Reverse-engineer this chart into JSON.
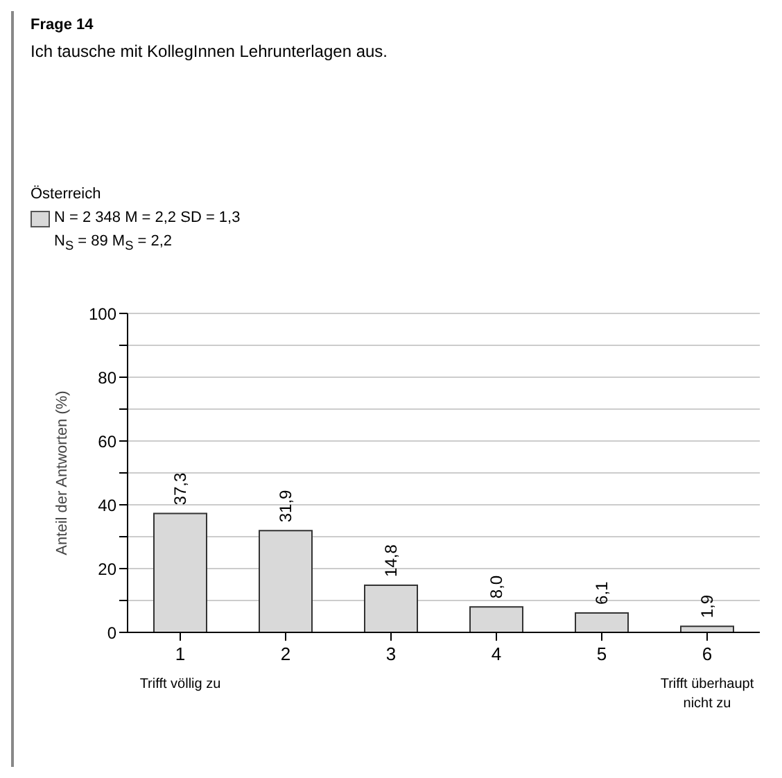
{
  "chart_data": {
    "type": "bar",
    "title": "Frage 14",
    "subtitle": "Ich tausche mit KollegInnen Lehrunterlagen aus.",
    "legend_title": "Österreich",
    "annotations": [
      "N$_{S}$ = 89  M$_{S}$ = 2,2"
    ],
    "categories": [
      "1\nTrifft völlig zu",
      "2",
      "3",
      "4",
      "5",
      "6\nTrifft überhaupt\nnicht zu"
    ],
    "series": [
      {
        "name": "N = 2 348 M = 2,2 SD = 1,3",
        "color": "#d9d9d9",
        "values": [
          37.3,
          31.9,
          14.8,
          8.0,
          6.1,
          1.9
        ],
        "value_labels": [
          "37,3",
          "31,9",
          "14,8",
          "8,0",
          "6,1",
          "1,9"
        ]
      }
    ],
    "ylabel": "Anteil der Antworten (%)",
    "ylim": [
      0,
      100
    ],
    "yticks": [
      0,
      {
        "value": 10,
        "label": null
      },
      20,
      {
        "value": 30,
        "label": null
      },
      40,
      {
        "value": 50,
        "label": null
      },
      60,
      {
        "value": 70,
        "label": null
      },
      80,
      {
        "value": 90,
        "label": null
      },
      100
    ],
    "grid": "y",
    "legend": "top left"
  }
}
